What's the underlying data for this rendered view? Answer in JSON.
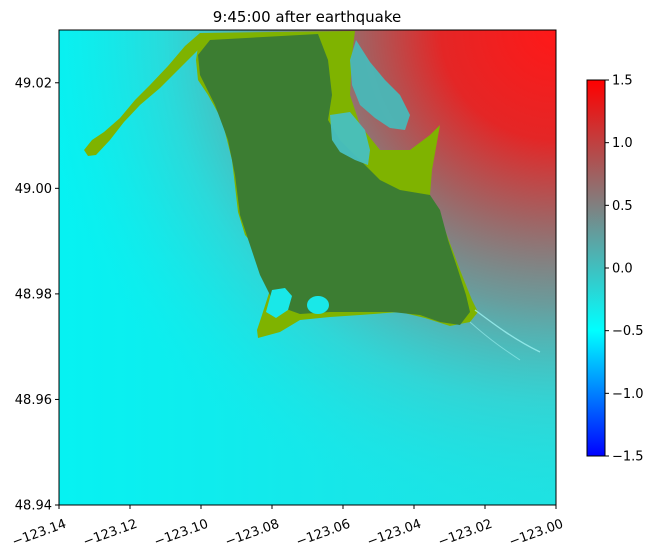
{
  "chart_data": {
    "type": "heatmap",
    "title": "9:45:00 after earthquake",
    "xlabel": "",
    "ylabel": "",
    "xlim": [
      -123.14,
      -123.0
    ],
    "ylim": [
      48.94,
      49.03
    ],
    "x_ticks": [
      -123.14,
      -123.12,
      -123.1,
      -123.08,
      -123.06,
      -123.04,
      -123.02,
      -123.0
    ],
    "x_tick_labels": [
      "−123.14",
      "−123.12",
      "−123.10",
      "−123.08",
      "−123.06",
      "−123.04",
      "−123.02",
      "−123.00"
    ],
    "y_ticks": [
      48.94,
      48.96,
      48.98,
      49.0,
      49.02
    ],
    "y_tick_labels": [
      "48.94",
      "48.96",
      "48.98",
      "49.00",
      "49.02"
    ],
    "colorbar": {
      "range": [
        -1.5,
        1.5
      ],
      "ticks": [
        -1.5,
        -1.0,
        -0.5,
        0.0,
        0.5,
        1.0,
        1.5
      ],
      "tick_labels": [
        "−1.5",
        "−1.0",
        "−0.5",
        "0.0",
        "0.5",
        "1.0",
        "1.5"
      ],
      "colors": [
        "#0000ff",
        "#00ffff",
        "#808080",
        "#ff0000"
      ]
    },
    "water_color": "#19e8e8",
    "land_dark_color": "#3c7d32",
    "land_light_color": "#7fb300",
    "high_color": "#e82020",
    "grid": false
  }
}
